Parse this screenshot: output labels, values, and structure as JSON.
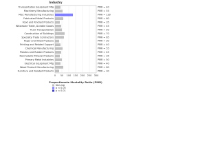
{
  "chart_data": {
    "type": "hbar",
    "title": "Industry",
    "categories": [
      "Transportation Equipment Mfg",
      "Machinery Manufacturing",
      "Misc Manufacturing Industries",
      "Fabricated Metal Products",
      "Food and Kindred Products",
      "Wholesale Trade, Durable Goods",
      "Truck Transportation",
      "Construction of Buildings",
      "Specialty Trade Contractors",
      "Paper and Allied Products",
      "Printing and Related Support",
      "Chemical Manufacturing",
      "Plastics and Rubber Products",
      "Nonmetallic Mineral Products",
      "Primary Metal Industries",
      "Electrical Equipment Mfg",
      "Wood Product Manufacturing",
      "Furniture and Related Products"
    ],
    "values": [
      40,
      55,
      130,
      60,
      35,
      45,
      50,
      70,
      65,
      30,
      40,
      55,
      45,
      35,
      50,
      40,
      60,
      30
    ],
    "value_labels": [
      "PMR = 40",
      "PMR = 55",
      "PMR = 130",
      "PMR = 60",
      "PMR = 35",
      "PMR = 45",
      "PMR = 50",
      "PMR = 70",
      "PMR = 65",
      "PMR = 30",
      "PMR = 40",
      "PMR = 55",
      "PMR = 45",
      "PMR = 35",
      "PMR = 50",
      "PMR = 40",
      "PMR = 60",
      "PMR = 30"
    ],
    "bar_colors": [
      "#c0c0c0",
      "#c0c0c0",
      "#8080ff",
      "#c0c0c0",
      "#c0c0c0",
      "#c0c0c0",
      "#c0c0c0",
      "#c0c0c0",
      "#c0c0c0",
      "#c0c0c0",
      "#c0c0c0",
      "#c0c0c0",
      "#c0c0c0",
      "#c0c0c0",
      "#c0c0c0",
      "#c0c0c0",
      "#c0c0c0",
      "#c0c0c0"
    ],
    "xlim": [
      0,
      300
    ],
    "xticks": [
      0,
      50,
      100,
      150,
      200,
      250,
      300
    ],
    "xlabel": "Proportionate Mortality Ratio (PMR)",
    "legend": [
      {
        "label": "Non-sig",
        "color": "#c0c0c0"
      },
      {
        "label": "p < 0.05",
        "color": "#8080ff"
      },
      {
        "label": "p < 0.01",
        "color": "#4040c0"
      }
    ]
  }
}
